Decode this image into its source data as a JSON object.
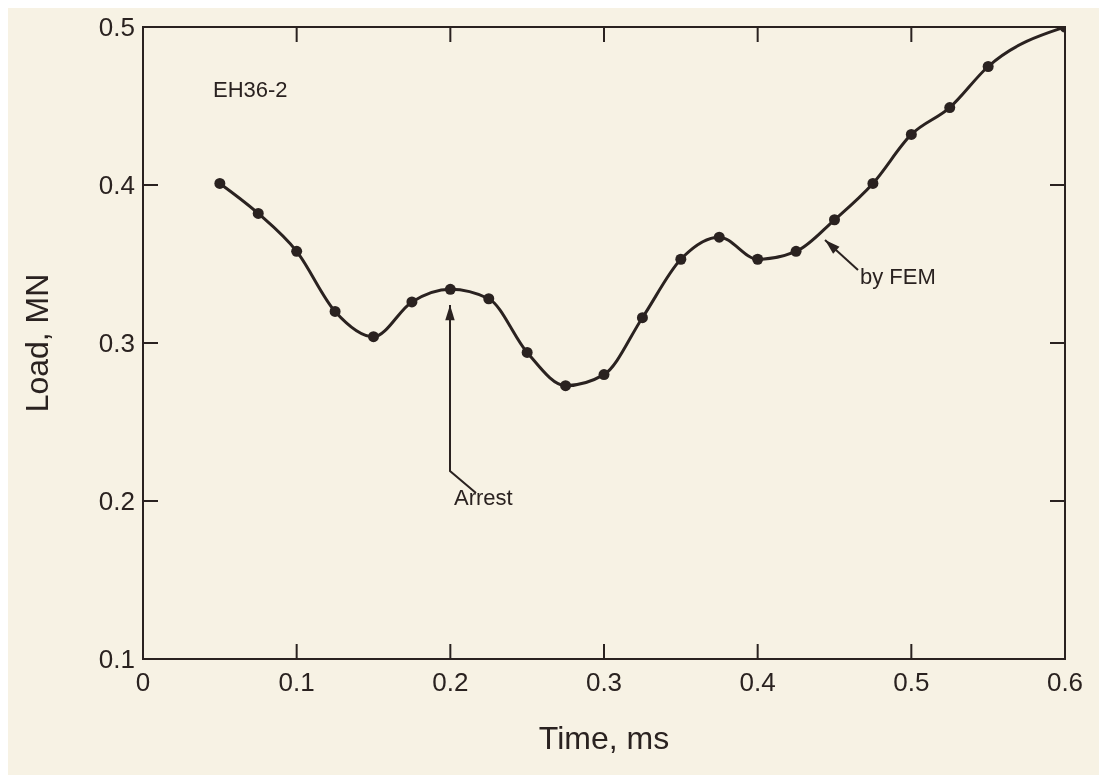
{
  "chart_data": {
    "type": "line",
    "xlabel": "Time, ms",
    "ylabel": "Load, MN",
    "x": [
      0.05,
      0.075,
      0.1,
      0.125,
      0.15,
      0.175,
      0.2,
      0.225,
      0.25,
      0.275,
      0.3,
      0.325,
      0.35,
      0.375,
      0.4,
      0.425,
      0.45,
      0.475,
      0.5,
      0.525,
      0.55,
      0.6
    ],
    "series": [
      {
        "color": "#2a2220",
        "values": [
          0.401,
          0.382,
          0.358,
          0.32,
          0.304,
          0.326,
          0.334,
          0.328,
          0.294,
          0.273,
          0.28,
          0.316,
          0.353,
          0.367,
          0.353,
          0.358,
          0.378,
          0.401,
          0.432,
          0.449,
          0.475,
          0.5
        ]
      }
    ],
    "xlim": [
      0,
      0.6
    ],
    "xticks": [
      0,
      0.1,
      0.2,
      0.3,
      0.4,
      0.5,
      0.6
    ],
    "ylim": [
      0.1,
      0.5
    ],
    "yticks": [
      0.1,
      0.2,
      0.3,
      0.4,
      0.5
    ],
    "marker": "circle",
    "line_style": "solid",
    "annotations": [
      "EH36-2",
      "Arrest",
      "by FEM"
    ]
  }
}
